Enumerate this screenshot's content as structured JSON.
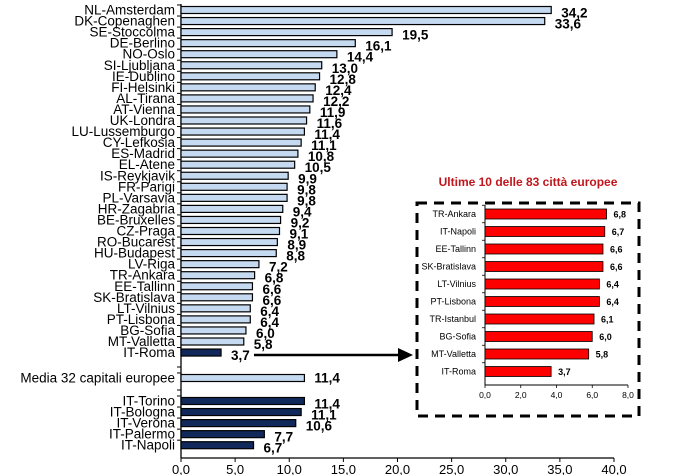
{
  "chart_data": [
    {
      "type": "bar",
      "orientation": "horizontal",
      "title": "",
      "xlabel": "",
      "ylabel": "",
      "xlim": [
        0,
        40
      ],
      "x_ticks": [
        "0,0",
        "5,0",
        "10,0",
        "15,0",
        "20,0",
        "25,0",
        "30,0",
        "35,0",
        "40,0"
      ],
      "grid": false,
      "colors": {
        "capitals": "#c5d9f1",
        "highlight": "#10285a",
        "outline": "#000000"
      },
      "groups": [
        {
          "name": "capitals",
          "categories": [
            "NL-Amsterdam",
            "DK-Copenaghen",
            "SE-Stoccolma",
            "DE-Berlino",
            "NO-Oslo",
            "SI-Ljubljana",
            "IE-Dublino",
            "FI-Helsinki",
            "AL-Tirana",
            "AT-Vienna",
            "UK-Londra",
            "LU-Lussemburgo",
            "CY-Lefkosia",
            "ES-Madrid",
            "EL-Atene",
            "IS-Reykjavik",
            "FR-Parigi",
            "PL-Varsavia",
            "HR-Zagabria",
            "BE-Bruxelles",
            "CZ-Praga",
            "RO-Bucarest",
            "HU-Budapest",
            "LV-Riga",
            "TR-Ankara",
            "EE-Tallinn",
            "SK-Bratislava",
            "LT-Vilnius",
            "PT-Lisbona",
            "BG-Sofia",
            "MT-Valletta",
            "IT-Roma"
          ],
          "values": [
            34.2,
            33.6,
            19.5,
            16.1,
            14.4,
            13.0,
            12.8,
            12.4,
            12.2,
            11.9,
            11.6,
            11.4,
            11.1,
            10.8,
            10.5,
            9.9,
            9.8,
            9.8,
            9.4,
            9.2,
            9.1,
            8.9,
            8.8,
            7.2,
            6.8,
            6.6,
            6.6,
            6.4,
            6.4,
            6.0,
            5.8,
            3.7
          ],
          "labels": [
            "34,2",
            "33,6",
            "19,5",
            "16,1",
            "14,4",
            "13,0",
            "12,8",
            "12,4",
            "12,2",
            "11,9",
            "11,6",
            "11,4",
            "11,1",
            "10,8",
            "10,5",
            "9,9",
            "9,8",
            "9,8",
            "9,4",
            "9,2",
            "9,1",
            "8,9",
            "8,8",
            "7,2",
            "6,8",
            "6,6",
            "6,6",
            "6,4",
            "6,4",
            "6,0",
            "5,8",
            "3,7"
          ],
          "highlighted": [
            "IT-Roma"
          ]
        },
        {
          "name": "average",
          "categories": [
            "Media 32 capitali europee"
          ],
          "values": [
            11.4
          ],
          "labels": [
            "11,4"
          ]
        },
        {
          "name": "italian-cities",
          "categories": [
            "IT-Torino",
            "IT-Bologna",
            "IT-Verona",
            "IT-Palermo",
            "IT-Napoli"
          ],
          "values": [
            11.4,
            11.1,
            10.6,
            7.7,
            6.7
          ],
          "labels": [
            "11,4",
            "11,1",
            "10,6",
            "7,7",
            "6,7"
          ]
        }
      ]
    },
    {
      "type": "bar",
      "orientation": "horizontal",
      "title": "Ultime 10 delle 83 città europee",
      "title_color": "#c0161d",
      "xlim": [
        0,
        8
      ],
      "x_ticks": [
        "0,0",
        "2,0",
        "4,0",
        "6,0",
        "8,0"
      ],
      "grid": false,
      "bar_color": "#ff0000",
      "categories": [
        "TR-Ankara",
        "IT-Napoli",
        "EE-Tallinn",
        "SK-Bratislava",
        "LT-Vilnius",
        "PT-Lisbona",
        "TR-Istanbul",
        "BG-Sofia",
        "MT-Valletta",
        "IT-Roma"
      ],
      "values": [
        6.8,
        6.7,
        6.6,
        6.6,
        6.4,
        6.4,
        6.1,
        6.0,
        5.8,
        3.7
      ],
      "labels": [
        "6,8",
        "6,7",
        "6,6",
        "6,6",
        "6,4",
        "6,4",
        "6,1",
        "6,0",
        "5,8",
        "3,7"
      ],
      "placement": "right, inset with dashed border, arrow from IT-Roma"
    }
  ]
}
